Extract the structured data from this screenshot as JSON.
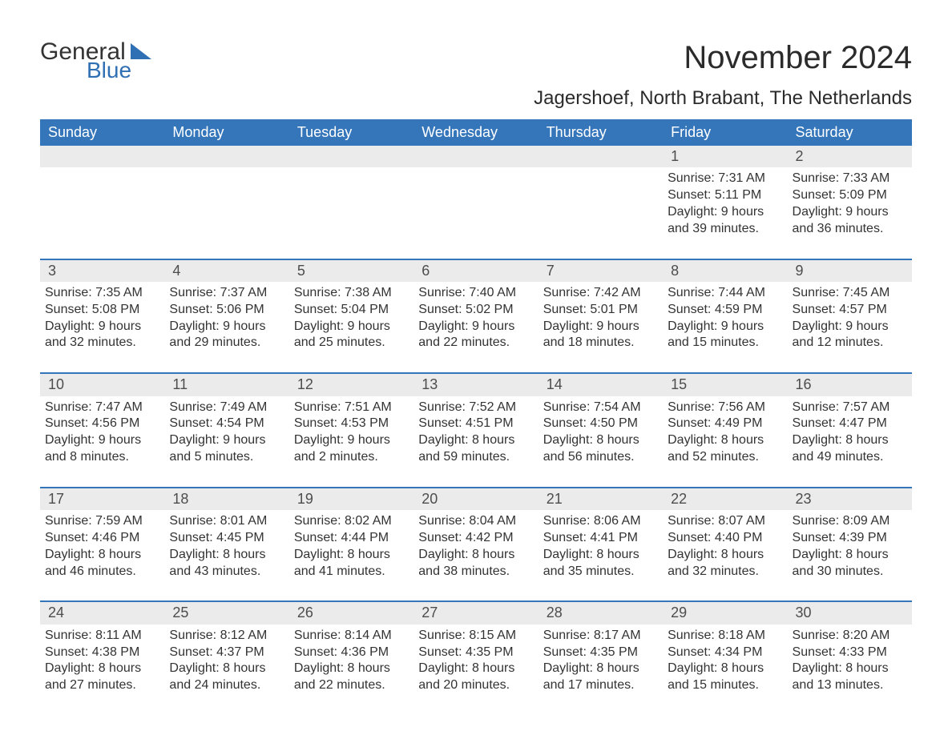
{
  "brand": {
    "general": "General",
    "blue": "Blue"
  },
  "title": "November 2024",
  "location": "Jagershoef, North Brabant, The Netherlands",
  "columns": [
    "Sunday",
    "Monday",
    "Tuesday",
    "Wednesday",
    "Thursday",
    "Friday",
    "Saturday"
  ],
  "colors": {
    "header_bg": "#3576bb",
    "header_fg": "#ffffff",
    "daynum_bg": "#ebebeb",
    "rule": "#3576bb",
    "text": "#333333",
    "brand_blue": "#2f6fb3"
  },
  "typography": {
    "title_fontsize": 40,
    "location_fontsize": 24,
    "dow_fontsize": 18,
    "daynum_fontsize": 18,
    "body_fontsize": 16
  },
  "weeks": [
    [
      null,
      null,
      null,
      null,
      null,
      {
        "n": "1",
        "sunrise": "Sunrise: 7:31 AM",
        "sunset": "Sunset: 5:11 PM",
        "dl1": "Daylight: 9 hours",
        "dl2": "and 39 minutes."
      },
      {
        "n": "2",
        "sunrise": "Sunrise: 7:33 AM",
        "sunset": "Sunset: 5:09 PM",
        "dl1": "Daylight: 9 hours",
        "dl2": "and 36 minutes."
      }
    ],
    [
      {
        "n": "3",
        "sunrise": "Sunrise: 7:35 AM",
        "sunset": "Sunset: 5:08 PM",
        "dl1": "Daylight: 9 hours",
        "dl2": "and 32 minutes."
      },
      {
        "n": "4",
        "sunrise": "Sunrise: 7:37 AM",
        "sunset": "Sunset: 5:06 PM",
        "dl1": "Daylight: 9 hours",
        "dl2": "and 29 minutes."
      },
      {
        "n": "5",
        "sunrise": "Sunrise: 7:38 AM",
        "sunset": "Sunset: 5:04 PM",
        "dl1": "Daylight: 9 hours",
        "dl2": "and 25 minutes."
      },
      {
        "n": "6",
        "sunrise": "Sunrise: 7:40 AM",
        "sunset": "Sunset: 5:02 PM",
        "dl1": "Daylight: 9 hours",
        "dl2": "and 22 minutes."
      },
      {
        "n": "7",
        "sunrise": "Sunrise: 7:42 AM",
        "sunset": "Sunset: 5:01 PM",
        "dl1": "Daylight: 9 hours",
        "dl2": "and 18 minutes."
      },
      {
        "n": "8",
        "sunrise": "Sunrise: 7:44 AM",
        "sunset": "Sunset: 4:59 PM",
        "dl1": "Daylight: 9 hours",
        "dl2": "and 15 minutes."
      },
      {
        "n": "9",
        "sunrise": "Sunrise: 7:45 AM",
        "sunset": "Sunset: 4:57 PM",
        "dl1": "Daylight: 9 hours",
        "dl2": "and 12 minutes."
      }
    ],
    [
      {
        "n": "10",
        "sunrise": "Sunrise: 7:47 AM",
        "sunset": "Sunset: 4:56 PM",
        "dl1": "Daylight: 9 hours",
        "dl2": "and 8 minutes."
      },
      {
        "n": "11",
        "sunrise": "Sunrise: 7:49 AM",
        "sunset": "Sunset: 4:54 PM",
        "dl1": "Daylight: 9 hours",
        "dl2": "and 5 minutes."
      },
      {
        "n": "12",
        "sunrise": "Sunrise: 7:51 AM",
        "sunset": "Sunset: 4:53 PM",
        "dl1": "Daylight: 9 hours",
        "dl2": "and 2 minutes."
      },
      {
        "n": "13",
        "sunrise": "Sunrise: 7:52 AM",
        "sunset": "Sunset: 4:51 PM",
        "dl1": "Daylight: 8 hours",
        "dl2": "and 59 minutes."
      },
      {
        "n": "14",
        "sunrise": "Sunrise: 7:54 AM",
        "sunset": "Sunset: 4:50 PM",
        "dl1": "Daylight: 8 hours",
        "dl2": "and 56 minutes."
      },
      {
        "n": "15",
        "sunrise": "Sunrise: 7:56 AM",
        "sunset": "Sunset: 4:49 PM",
        "dl1": "Daylight: 8 hours",
        "dl2": "and 52 minutes."
      },
      {
        "n": "16",
        "sunrise": "Sunrise: 7:57 AM",
        "sunset": "Sunset: 4:47 PM",
        "dl1": "Daylight: 8 hours",
        "dl2": "and 49 minutes."
      }
    ],
    [
      {
        "n": "17",
        "sunrise": "Sunrise: 7:59 AM",
        "sunset": "Sunset: 4:46 PM",
        "dl1": "Daylight: 8 hours",
        "dl2": "and 46 minutes."
      },
      {
        "n": "18",
        "sunrise": "Sunrise: 8:01 AM",
        "sunset": "Sunset: 4:45 PM",
        "dl1": "Daylight: 8 hours",
        "dl2": "and 43 minutes."
      },
      {
        "n": "19",
        "sunrise": "Sunrise: 8:02 AM",
        "sunset": "Sunset: 4:44 PM",
        "dl1": "Daylight: 8 hours",
        "dl2": "and 41 minutes."
      },
      {
        "n": "20",
        "sunrise": "Sunrise: 8:04 AM",
        "sunset": "Sunset: 4:42 PM",
        "dl1": "Daylight: 8 hours",
        "dl2": "and 38 minutes."
      },
      {
        "n": "21",
        "sunrise": "Sunrise: 8:06 AM",
        "sunset": "Sunset: 4:41 PM",
        "dl1": "Daylight: 8 hours",
        "dl2": "and 35 minutes."
      },
      {
        "n": "22",
        "sunrise": "Sunrise: 8:07 AM",
        "sunset": "Sunset: 4:40 PM",
        "dl1": "Daylight: 8 hours",
        "dl2": "and 32 minutes."
      },
      {
        "n": "23",
        "sunrise": "Sunrise: 8:09 AM",
        "sunset": "Sunset: 4:39 PM",
        "dl1": "Daylight: 8 hours",
        "dl2": "and 30 minutes."
      }
    ],
    [
      {
        "n": "24",
        "sunrise": "Sunrise: 8:11 AM",
        "sunset": "Sunset: 4:38 PM",
        "dl1": "Daylight: 8 hours",
        "dl2": "and 27 minutes."
      },
      {
        "n": "25",
        "sunrise": "Sunrise: 8:12 AM",
        "sunset": "Sunset: 4:37 PM",
        "dl1": "Daylight: 8 hours",
        "dl2": "and 24 minutes."
      },
      {
        "n": "26",
        "sunrise": "Sunrise: 8:14 AM",
        "sunset": "Sunset: 4:36 PM",
        "dl1": "Daylight: 8 hours",
        "dl2": "and 22 minutes."
      },
      {
        "n": "27",
        "sunrise": "Sunrise: 8:15 AM",
        "sunset": "Sunset: 4:35 PM",
        "dl1": "Daylight: 8 hours",
        "dl2": "and 20 minutes."
      },
      {
        "n": "28",
        "sunrise": "Sunrise: 8:17 AM",
        "sunset": "Sunset: 4:35 PM",
        "dl1": "Daylight: 8 hours",
        "dl2": "and 17 minutes."
      },
      {
        "n": "29",
        "sunrise": "Sunrise: 8:18 AM",
        "sunset": "Sunset: 4:34 PM",
        "dl1": "Daylight: 8 hours",
        "dl2": "and 15 minutes."
      },
      {
        "n": "30",
        "sunrise": "Sunrise: 8:20 AM",
        "sunset": "Sunset: 4:33 PM",
        "dl1": "Daylight: 8 hours",
        "dl2": "and 13 minutes."
      }
    ]
  ]
}
